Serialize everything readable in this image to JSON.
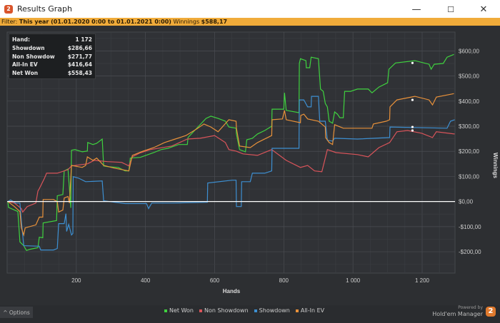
{
  "window": {
    "title": "Results Graph",
    "minimize": "—",
    "maximize": "☐",
    "close": "✕"
  },
  "filter": {
    "label": "Filter:",
    "range": "This year (01.01.2020 0:00 to 01.01.2021 0:00)",
    "winnings_label": "Winnings",
    "winnings_value": "$588,17"
  },
  "tooltip": {
    "rows": [
      {
        "label": "Hand:",
        "value": "1 172"
      },
      {
        "label": "Showdown",
        "value": "$286,66"
      },
      {
        "label": "Non Showdow",
        "value": "$271,77"
      },
      {
        "label": "All-In EV",
        "value": "$416,64"
      },
      {
        "label": "Net Won",
        "value": "$558,43"
      }
    ]
  },
  "bottom": {
    "options_label": "^  Options",
    "powered_by": "Powered by",
    "brand": "Hold'em Manager",
    "brand_logo": "2"
  },
  "chart_data": {
    "type": "line",
    "xlabel": "Hands",
    "ylabel": "Winnings",
    "xlim": [
      0,
      1295
    ],
    "ylim": [
      -285,
      675
    ],
    "xticks": [
      200,
      400,
      600,
      800,
      1000,
      1200
    ],
    "xtick_labels": [
      "200",
      "400",
      "600",
      "800",
      "1 000",
      "1 200"
    ],
    "yticks": [
      600,
      500,
      400,
      300,
      200,
      100,
      0,
      -100,
      -200
    ],
    "ytick_labels": [
      "$600,00",
      "$500,00",
      "$400,00",
      "$300,00",
      "$200,00",
      "$100,00",
      "$0,00",
      "-$100,00",
      "-$200,00"
    ],
    "grid": true,
    "legend_position": "bottom",
    "series": [
      {
        "name": "Net Won",
        "color": "#3fd13f",
        "points": [
          [
            2,
            0
          ],
          [
            4,
            -23
          ],
          [
            31,
            -40
          ],
          [
            37,
            -161
          ],
          [
            48,
            -176
          ],
          [
            56,
            -195
          ],
          [
            66,
            -190
          ],
          [
            89,
            -184
          ],
          [
            93,
            -142
          ],
          [
            103,
            -144
          ],
          [
            104,
            -85
          ],
          [
            143,
            -76
          ],
          [
            145,
            23
          ],
          [
            161,
            28
          ],
          [
            165,
            122
          ],
          [
            176,
            130
          ],
          [
            180,
            51
          ],
          [
            184,
            -25
          ],
          [
            186,
            204
          ],
          [
            196,
            207
          ],
          [
            217,
            198
          ],
          [
            232,
            201
          ],
          [
            233,
            235
          ],
          [
            248,
            227
          ],
          [
            259,
            232
          ],
          [
            275,
            249
          ],
          [
            279,
            142
          ],
          [
            290,
            139
          ],
          [
            321,
            136
          ],
          [
            341,
            122
          ],
          [
            352,
            122
          ],
          [
            356,
            173
          ],
          [
            385,
            176
          ],
          [
            424,
            195
          ],
          [
            445,
            207
          ],
          [
            465,
            212
          ],
          [
            496,
            227
          ],
          [
            521,
            227
          ],
          [
            523,
            255
          ],
          [
            575,
            331
          ],
          [
            589,
            340
          ],
          [
            610,
            331
          ],
          [
            631,
            320
          ],
          [
            641,
            297
          ],
          [
            662,
            292
          ],
          [
            663,
            269
          ],
          [
            672,
            207
          ],
          [
            689,
            198
          ],
          [
            693,
            246
          ],
          [
            709,
            252
          ],
          [
            724,
            269
          ],
          [
            745,
            283
          ],
          [
            765,
            300
          ],
          [
            766,
            368
          ],
          [
            800,
            368
          ],
          [
            802,
            433
          ],
          [
            807,
            363
          ],
          [
            844,
            354
          ],
          [
            845,
            550
          ],
          [
            848,
            569
          ],
          [
            864,
            561
          ],
          [
            865,
            533
          ],
          [
            875,
            533
          ],
          [
            879,
            575
          ],
          [
            900,
            569
          ],
          [
            906,
            448
          ],
          [
            914,
            439
          ],
          [
            920,
            391
          ],
          [
            926,
            377
          ],
          [
            931,
            320
          ],
          [
            941,
            312
          ],
          [
            947,
            357
          ],
          [
            955,
            348
          ],
          [
            962,
            334
          ],
          [
            972,
            334
          ],
          [
            976,
            439
          ],
          [
            993,
            439
          ],
          [
            1013,
            448
          ],
          [
            1044,
            448
          ],
          [
            1055,
            433
          ],
          [
            1075,
            456
          ],
          [
            1100,
            473
          ],
          [
            1104,
            527
          ],
          [
            1123,
            552
          ],
          [
            1179,
            561
          ],
          [
            1220,
            547
          ],
          [
            1226,
            527
          ],
          [
            1235,
            547
          ],
          [
            1261,
            550
          ],
          [
            1272,
            575
          ],
          [
            1292,
            586
          ]
        ]
      },
      {
        "name": "Non Showdown",
        "color": "#d9545a",
        "points": [
          [
            2,
            0
          ],
          [
            21,
            -6
          ],
          [
            41,
            -28
          ],
          [
            45,
            -42
          ],
          [
            58,
            -20
          ],
          [
            83,
            -6
          ],
          [
            89,
            42
          ],
          [
            93,
            51
          ],
          [
            108,
            93
          ],
          [
            114,
            113
          ],
          [
            145,
            113
          ],
          [
            176,
            127
          ],
          [
            186,
            142
          ],
          [
            232,
            150
          ],
          [
            252,
            164
          ],
          [
            290,
            159
          ],
          [
            331,
            156
          ],
          [
            352,
            142
          ],
          [
            362,
            178
          ],
          [
            383,
            193
          ],
          [
            414,
            207
          ],
          [
            476,
            221
          ],
          [
            521,
            249
          ],
          [
            558,
            252
          ],
          [
            600,
            263
          ],
          [
            631,
            235
          ],
          [
            641,
            207
          ],
          [
            662,
            201
          ],
          [
            682,
            190
          ],
          [
            724,
            184
          ],
          [
            765,
            207
          ],
          [
            807,
            164
          ],
          [
            848,
            136
          ],
          [
            869,
            144
          ],
          [
            889,
            122
          ],
          [
            910,
            119
          ],
          [
            920,
            173
          ],
          [
            926,
            207
          ],
          [
            951,
            195
          ],
          [
            1013,
            187
          ],
          [
            1044,
            178
          ],
          [
            1075,
            215
          ],
          [
            1106,
            235
          ],
          [
            1127,
            278
          ],
          [
            1158,
            283
          ],
          [
            1199,
            272
          ],
          [
            1230,
            255
          ],
          [
            1241,
            278
          ],
          [
            1294,
            269
          ]
        ]
      },
      {
        "name": "Showdown",
        "color": "#3d8fd1",
        "points": [
          [
            2,
            0
          ],
          [
            10,
            6
          ],
          [
            25,
            -6
          ],
          [
            37,
            -6
          ],
          [
            41,
            -76
          ],
          [
            48,
            -176
          ],
          [
            93,
            -178
          ],
          [
            97,
            -193
          ],
          [
            134,
            -193
          ],
          [
            145,
            -187
          ],
          [
            149,
            -88
          ],
          [
            165,
            -88
          ],
          [
            170,
            -48
          ],
          [
            172,
            -119
          ],
          [
            178,
            -91
          ],
          [
            186,
            -133
          ],
          [
            190,
            -127
          ],
          [
            191,
            99
          ],
          [
            207,
            93
          ],
          [
            227,
            79
          ],
          [
            275,
            82
          ],
          [
            279,
            3
          ],
          [
            341,
            -8
          ],
          [
            403,
            -8
          ],
          [
            409,
            -28
          ],
          [
            418,
            -6
          ],
          [
            476,
            -6
          ],
          [
            579,
            -3
          ],
          [
            580,
            74
          ],
          [
            651,
            85
          ],
          [
            662,
            85
          ],
          [
            663,
            -20
          ],
          [
            677,
            -20
          ],
          [
            678,
            79
          ],
          [
            703,
            79
          ],
          [
            709,
            113
          ],
          [
            745,
            113
          ],
          [
            765,
            122
          ],
          [
            766,
            212
          ],
          [
            844,
            212
          ],
          [
            845,
            405
          ],
          [
            858,
            405
          ],
          [
            869,
            377
          ],
          [
            879,
            377
          ],
          [
            880,
            419
          ],
          [
            900,
            419
          ],
          [
            904,
            320
          ],
          [
            920,
            320
          ],
          [
            926,
            244
          ],
          [
            941,
            241
          ],
          [
            947,
            252
          ],
          [
            1013,
            249
          ],
          [
            1106,
            255
          ],
          [
            1107,
            297
          ],
          [
            1272,
            292
          ],
          [
            1282,
            320
          ],
          [
            1294,
            326
          ]
        ]
      },
      {
        "name": "All-In EV",
        "color": "#e8913a",
        "points": [
          [
            2,
            0
          ],
          [
            21,
            -20
          ],
          [
            37,
            -40
          ],
          [
            41,
            -105
          ],
          [
            48,
            -133
          ],
          [
            52,
            -105
          ],
          [
            83,
            -93
          ],
          [
            93,
            -62
          ],
          [
            103,
            -62
          ],
          [
            104,
            8
          ],
          [
            134,
            8
          ],
          [
            145,
            0
          ],
          [
            149,
            -42
          ],
          [
            161,
            -34
          ],
          [
            165,
            14
          ],
          [
            176,
            20
          ],
          [
            180,
            -6
          ],
          [
            186,
            144
          ],
          [
            217,
            136
          ],
          [
            227,
            144
          ],
          [
            232,
            178
          ],
          [
            248,
            164
          ],
          [
            259,
            173
          ],
          [
            279,
            144
          ],
          [
            310,
            133
          ],
          [
            352,
            122
          ],
          [
            362,
            184
          ],
          [
            393,
            201
          ],
          [
            424,
            215
          ],
          [
            455,
            235
          ],
          [
            486,
            249
          ],
          [
            517,
            263
          ],
          [
            548,
            289
          ],
          [
            569,
            309
          ],
          [
            589,
            297
          ],
          [
            610,
            278
          ],
          [
            641,
            326
          ],
          [
            662,
            320
          ],
          [
            663,
            292
          ],
          [
            672,
            221
          ],
          [
            703,
            215
          ],
          [
            724,
            235
          ],
          [
            765,
            263
          ],
          [
            766,
            326
          ],
          [
            796,
            329
          ],
          [
            802,
            363
          ],
          [
            807,
            326
          ],
          [
            848,
            314
          ],
          [
            849,
            343
          ],
          [
            858,
            348
          ],
          [
            869,
            329
          ],
          [
            900,
            320
          ],
          [
            920,
            297
          ],
          [
            921,
            255
          ],
          [
            931,
            235
          ],
          [
            941,
            227
          ],
          [
            947,
            306
          ],
          [
            972,
            292
          ],
          [
            1055,
            292
          ],
          [
            1059,
            309
          ],
          [
            1096,
            320
          ],
          [
            1106,
            326
          ],
          [
            1107,
            377
          ],
          [
            1127,
            405
          ],
          [
            1179,
            419
          ],
          [
            1220,
            405
          ],
          [
            1230,
            385
          ],
          [
            1241,
            416
          ],
          [
            1292,
            430
          ]
        ]
      }
    ]
  }
}
